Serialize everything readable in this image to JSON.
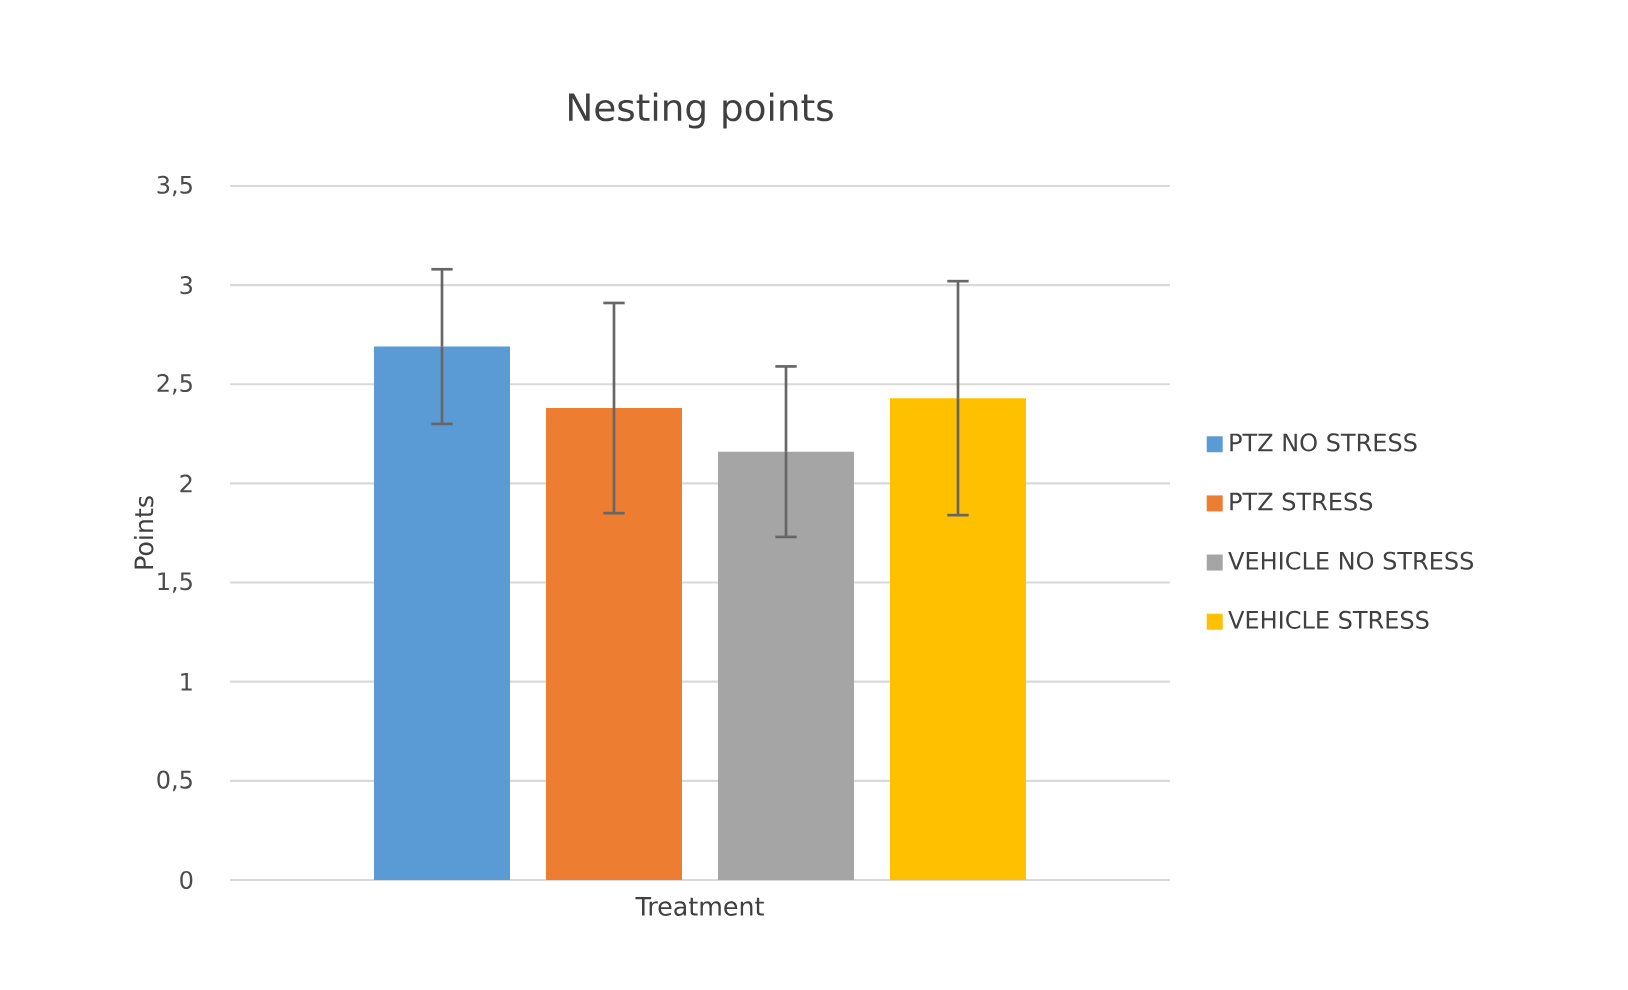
{
  "chart_data": {
    "type": "bar",
    "title": "Nesting points",
    "xlabel": "Treatment",
    "ylabel": "Points",
    "categories": [
      null
    ],
    "series": [
      {
        "name": "PTZ NO STRESS",
        "color": "#5b9bd5",
        "values": [
          2.69
        ],
        "errors": [
          0.39
        ]
      },
      {
        "name": "PTZ STRESS",
        "color": "#ed7d31",
        "values": [
          2.38
        ],
        "errors": [
          0.53
        ]
      },
      {
        "name": "VEHICLE NO STRESS",
        "color": "#a5a5a5",
        "values": [
          2.16
        ],
        "errors": [
          0.43
        ]
      },
      {
        "name": "VEHICLE STRESS",
        "color": "#ffc000",
        "values": [
          2.43
        ],
        "errors": [
          0.59
        ]
      }
    ],
    "ylim": [
      0,
      3.5
    ],
    "yticks": [
      0,
      {
        "value": 0.5,
        "label": "0,5"
      },
      1,
      {
        "value": 1.5,
        "label": "1,5"
      },
      2,
      {
        "value": 2.5,
        "label": "2,5"
      },
      3,
      {
        "value": 3.5,
        "label": "3,5"
      }
    ],
    "grid": "y",
    "legend": "right"
  }
}
